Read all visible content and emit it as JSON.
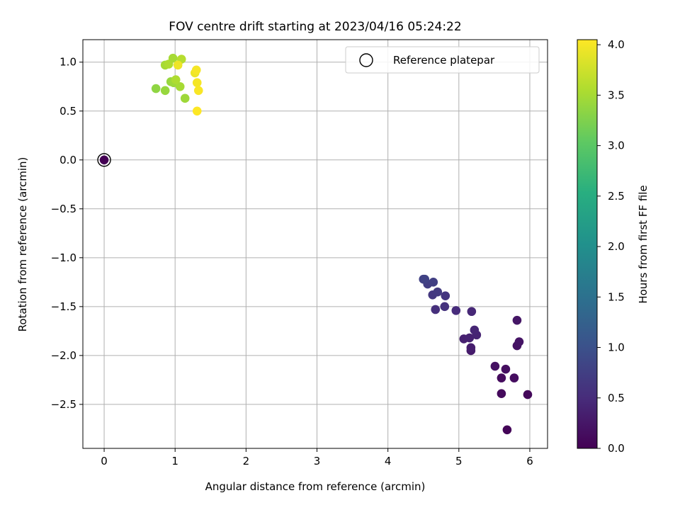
{
  "chart_data": {
    "type": "scatter",
    "title": "FOV centre drift starting at 2023/04/16 05:24:22",
    "xlabel": "Angular distance from reference (arcmin)",
    "ylabel": "Rotation from reference (arcmin)",
    "xlim": [
      -0.3,
      6.25
    ],
    "ylim": [
      -2.95,
      1.23
    ],
    "xticks": [
      0,
      1,
      2,
      3,
      4,
      5,
      6
    ],
    "xtick_labels": [
      "0",
      "1",
      "2",
      "3",
      "4",
      "5",
      "6"
    ],
    "yticks": [
      1.0,
      0.5,
      0.0,
      -0.5,
      -1.0,
      -1.5,
      -2.0,
      -2.5
    ],
    "ytick_labels": [
      "1.0",
      "0.5",
      "0.0",
      "−0.5",
      "−1.0",
      "−1.5",
      "−2.0",
      "−2.5"
    ],
    "grid": true,
    "legend": {
      "position": "top-right",
      "entries": [
        "Reference platepar"
      ]
    },
    "colorbar": {
      "label": "Hours from first FF file",
      "colormap": "viridis",
      "range": [
        0.0,
        4.05
      ],
      "ticks": [
        0.0,
        0.5,
        1.0,
        1.5,
        2.0,
        2.5,
        3.0,
        3.5,
        4.0
      ],
      "tick_labels": [
        "0.0",
        "0.5",
        "1.0",
        "1.5",
        "2.0",
        "2.5",
        "3.0",
        "3.5",
        "4.0"
      ]
    },
    "reference": {
      "x": 0.0,
      "y": 0.0,
      "hours": 0.0
    },
    "points": [
      {
        "x": 0.0,
        "y": 0.0,
        "hours": 0.0
      },
      {
        "x": 5.68,
        "y": -2.76,
        "hours": 0.05
      },
      {
        "x": 5.97,
        "y": -2.4,
        "hours": 0.08
      },
      {
        "x": 5.6,
        "y": -2.39,
        "hours": 0.1
      },
      {
        "x": 5.6,
        "y": -2.23,
        "hours": 0.12
      },
      {
        "x": 5.78,
        "y": -2.23,
        "hours": 0.14
      },
      {
        "x": 5.66,
        "y": -2.14,
        "hours": 0.16
      },
      {
        "x": 5.51,
        "y": -2.11,
        "hours": 0.18
      },
      {
        "x": 5.82,
        "y": -1.9,
        "hours": 0.2
      },
      {
        "x": 5.85,
        "y": -1.86,
        "hours": 0.22
      },
      {
        "x": 5.82,
        "y": -1.64,
        "hours": 0.24
      },
      {
        "x": 5.17,
        "y": -1.95,
        "hours": 0.3
      },
      {
        "x": 5.17,
        "y": -1.92,
        "hours": 0.32
      },
      {
        "x": 5.07,
        "y": -1.83,
        "hours": 0.36
      },
      {
        "x": 5.15,
        "y": -1.82,
        "hours": 0.38
      },
      {
        "x": 5.25,
        "y": -1.79,
        "hours": 0.4
      },
      {
        "x": 5.22,
        "y": -1.74,
        "hours": 0.42
      },
      {
        "x": 5.18,
        "y": -1.55,
        "hours": 0.45
      },
      {
        "x": 4.96,
        "y": -1.54,
        "hours": 0.5
      },
      {
        "x": 4.67,
        "y": -1.53,
        "hours": 0.55
      },
      {
        "x": 4.8,
        "y": -1.5,
        "hours": 0.58
      },
      {
        "x": 4.81,
        "y": -1.39,
        "hours": 0.62
      },
      {
        "x": 4.63,
        "y": -1.38,
        "hours": 0.65
      },
      {
        "x": 4.7,
        "y": -1.35,
        "hours": 0.68
      },
      {
        "x": 4.56,
        "y": -1.27,
        "hours": 0.72
      },
      {
        "x": 4.64,
        "y": -1.25,
        "hours": 0.75
      },
      {
        "x": 4.5,
        "y": -1.22,
        "hours": 0.78
      },
      {
        "x": 4.52,
        "y": -1.22,
        "hours": 0.8
      },
      {
        "x": 0.73,
        "y": 0.73,
        "hours": 3.35
      },
      {
        "x": 0.86,
        "y": 0.71,
        "hours": 3.4
      },
      {
        "x": 1.14,
        "y": 0.63,
        "hours": 3.45
      },
      {
        "x": 0.94,
        "y": 0.8,
        "hours": 3.4
      },
      {
        "x": 0.98,
        "y": 0.79,
        "hours": 3.45
      },
      {
        "x": 1.07,
        "y": 0.75,
        "hours": 3.5
      },
      {
        "x": 1.01,
        "y": 0.82,
        "hours": 3.55
      },
      {
        "x": 0.86,
        "y": 0.97,
        "hours": 3.5
      },
      {
        "x": 0.91,
        "y": 0.98,
        "hours": 3.55
      },
      {
        "x": 0.97,
        "y": 1.04,
        "hours": 3.5
      },
      {
        "x": 1.09,
        "y": 1.03,
        "hours": 3.6
      },
      {
        "x": 1.04,
        "y": 0.97,
        "hours": 3.95
      },
      {
        "x": 1.28,
        "y": 0.89,
        "hours": 3.95
      },
      {
        "x": 1.3,
        "y": 0.92,
        "hours": 4.0
      },
      {
        "x": 1.31,
        "y": 0.79,
        "hours": 4.0
      },
      {
        "x": 1.33,
        "y": 0.71,
        "hours": 4.02
      },
      {
        "x": 1.31,
        "y": 0.5,
        "hours": 4.05
      }
    ]
  }
}
